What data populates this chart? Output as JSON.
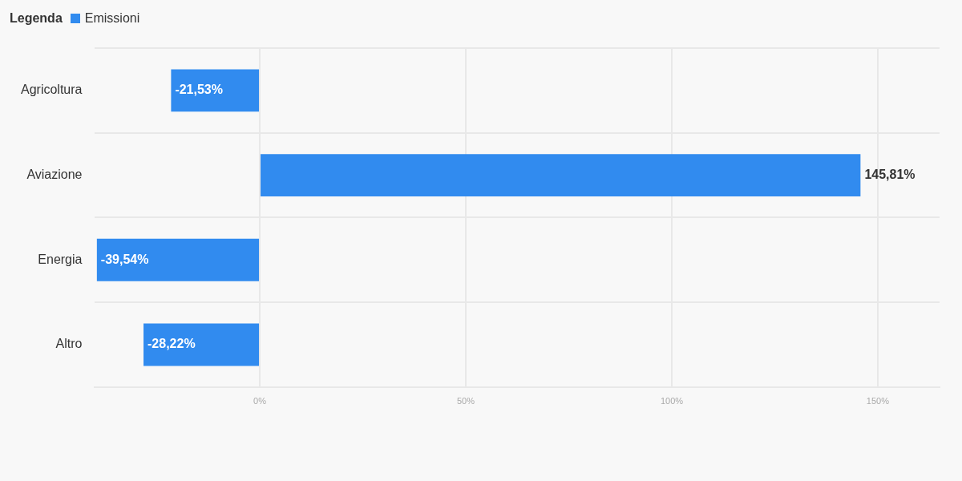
{
  "chart_data": {
    "type": "bar",
    "orientation": "horizontal",
    "legend_title": "Legenda",
    "legend": "top left",
    "categories": [
      "Agricoltura",
      "Aviazione",
      "Energia",
      "Altro"
    ],
    "series": [
      {
        "name": "Emissioni",
        "color": "#318bef",
        "values": [
          -21.53,
          145.81,
          -39.54,
          -28.22
        ],
        "value_labels": [
          "-21,53%",
          "145,81%",
          "-39,54%",
          "-28,22%"
        ]
      }
    ],
    "xlim": [
      -40,
      165
    ],
    "xticks": [
      {
        "value": 0,
        "label": "0%"
      },
      {
        "value": 50,
        "label": "50%"
      },
      {
        "value": 100,
        "label": "100%"
      },
      {
        "value": 150,
        "label": "150%"
      }
    ],
    "grid": true
  }
}
